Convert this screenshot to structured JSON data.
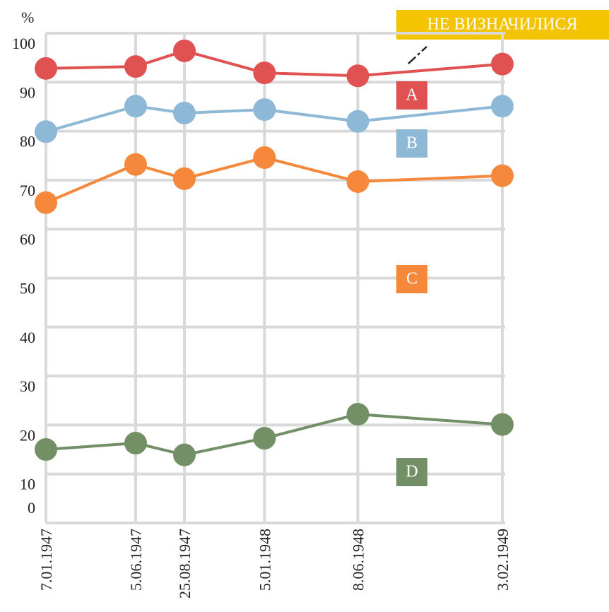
{
  "chart_data": {
    "type": "line",
    "y_label": "%",
    "annotation": "НЕ ВИЗНАЧИЛИСЯ",
    "x": [
      "7.01.1947",
      "5.06.1947",
      "25.08.1947",
      "5.01.1948",
      "8.06.1948",
      "3.02.1949"
    ],
    "xlim": [
      "7.01.1947",
      "3.02.1949"
    ],
    "ylim": [
      0,
      100
    ],
    "yticks": [
      0,
      10,
      20,
      30,
      40,
      50,
      60,
      70,
      80,
      90,
      100
    ],
    "grid": true,
    "series": [
      {
        "name": "A",
        "color": "#e05252",
        "values": [
          92.8,
          93.2,
          96.4,
          91.9,
          91.3,
          93.7
        ]
      },
      {
        "name": "B",
        "color": "#8db8d6",
        "values": [
          79.9,
          85.1,
          83.7,
          84.4,
          82.0,
          85.1
        ]
      },
      {
        "name": "C",
        "color": "#f5883a",
        "values": [
          65.4,
          73.2,
          70.3,
          74.6,
          69.7,
          70.9
        ]
      },
      {
        "name": "D",
        "color": "#728f66",
        "values": [
          15.0,
          16.3,
          13.9,
          17.3,
          22.2,
          20.1
        ]
      }
    ]
  }
}
